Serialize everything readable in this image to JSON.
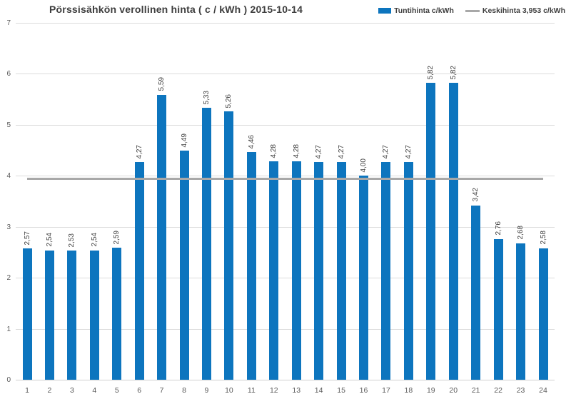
{
  "title": "Pörssisähkön verollinen hinta ( c / kWh ) 2015-10-14",
  "legend": {
    "items": [
      {
        "label": "Tuntihinta c/kWh",
        "type": "bar",
        "color": "#0d75be"
      },
      {
        "label": "Keskihinta 3,953 c/kWh",
        "type": "line",
        "color": "#a8a8a8"
      }
    ]
  },
  "chart_data": {
    "type": "bar",
    "title": "Pörssisähkön verollinen hinta ( c / kWh ) 2015-10-14",
    "categories": [
      "1",
      "2",
      "3",
      "4",
      "5",
      "6",
      "7",
      "8",
      "9",
      "10",
      "11",
      "12",
      "13",
      "14",
      "15",
      "16",
      "17",
      "18",
      "19",
      "20",
      "21",
      "22",
      "23",
      "24"
    ],
    "series": [
      {
        "name": "Tuntihinta c/kWh",
        "type": "bar",
        "color": "#0d75be",
        "values": [
          2.57,
          2.54,
          2.53,
          2.54,
          2.59,
          4.27,
          5.59,
          4.49,
          5.33,
          5.26,
          4.46,
          4.28,
          4.28,
          4.27,
          4.27,
          4.0,
          4.27,
          4.27,
          5.82,
          5.82,
          3.42,
          2.76,
          2.68,
          2.58
        ],
        "data_labels": [
          "2,57",
          "2,54",
          "2,53",
          "2,54",
          "2,59",
          "4,27",
          "5,59",
          "4,49",
          "5,33",
          "5,26",
          "4,46",
          "4,28",
          "4,28",
          "4,27",
          "4,27",
          "4,00",
          "4,27",
          "4,27",
          "5,82",
          "5,82",
          "3,42",
          "2,76",
          "2,68",
          "2,58"
        ]
      },
      {
        "name": "Keskihinta 3,953 c/kWh",
        "type": "line",
        "color": "#a8a8a8",
        "value": 3.953
      }
    ],
    "xlabel": "",
    "ylabel": "",
    "ylim": [
      0,
      7
    ],
    "yticks": [
      0,
      1,
      2,
      3,
      4,
      5,
      6,
      7
    ],
    "grid": true,
    "legend_position": "top-right",
    "data_labels_rotated": true
  }
}
